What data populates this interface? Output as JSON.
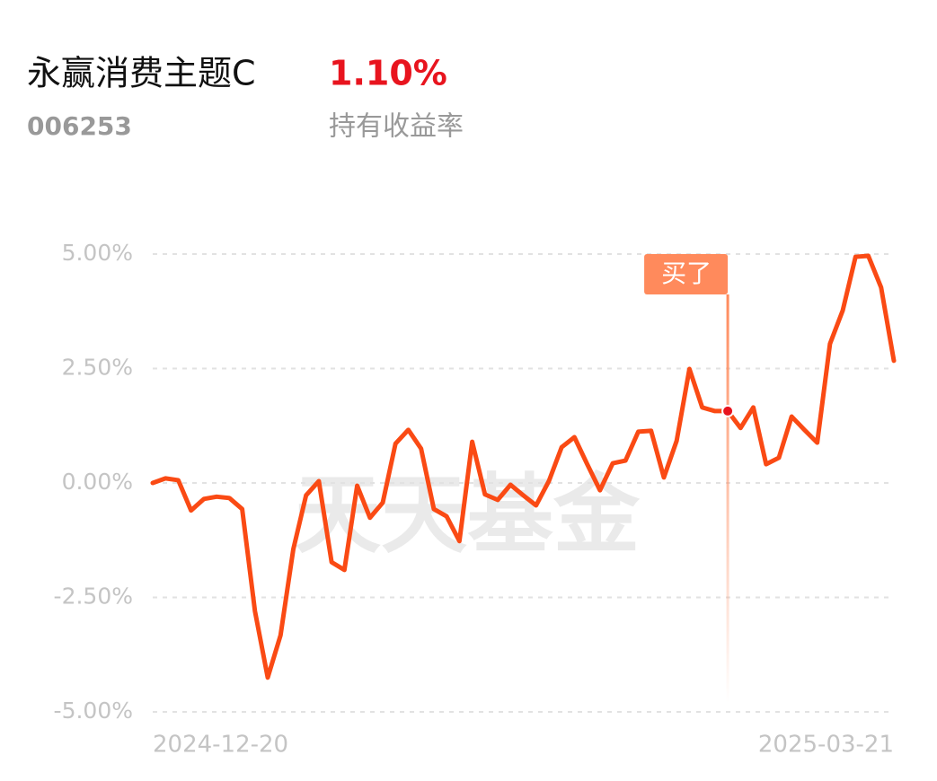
{
  "header": {
    "title": "永赢消费主题C",
    "return": "1.10%",
    "code": "006253",
    "return_label": "持有收益率"
  },
  "chart_data": {
    "type": "line",
    "watermark": "天天基金",
    "categories": [
      "2024-12-20",
      null,
      null,
      null,
      null,
      null,
      null,
      null,
      null,
      null,
      null,
      null,
      null,
      null,
      null,
      null,
      null,
      null,
      null,
      null,
      null,
      null,
      null,
      null,
      null,
      null,
      null,
      null,
      null,
      null,
      null,
      null,
      null,
      null,
      null,
      null,
      null,
      null,
      null,
      null,
      null,
      null,
      null,
      null,
      null,
      null,
      null,
      null,
      null,
      null,
      null,
      null,
      null,
      null,
      null,
      null,
      null,
      null,
      "2025-03-21"
    ],
    "series": [
      {
        "name": "持有收益率",
        "color": "#fa4a14",
        "values": [
          0.0,
          0.1,
          0.06,
          -0.6,
          -0.35,
          -0.3,
          -0.33,
          -0.57,
          -2.8,
          -4.25,
          -3.33,
          -1.45,
          -0.27,
          0.04,
          -1.73,
          -1.9,
          -0.06,
          -0.76,
          -0.43,
          0.86,
          1.16,
          0.75,
          -0.57,
          -0.73,
          -1.27,
          0.9,
          -0.25,
          -0.37,
          -0.04,
          -0.27,
          -0.49,
          0.04,
          0.78,
          1.0,
          0.41,
          -0.16,
          0.43,
          0.49,
          1.12,
          1.14,
          0.12,
          0.92,
          2.49,
          1.65,
          1.57,
          1.57,
          1.2,
          1.65,
          0.41,
          0.55,
          1.45,
          1.16,
          0.88,
          3.04,
          3.77,
          4.94,
          4.96,
          4.27,
          2.67
        ]
      }
    ],
    "annotations": [
      {
        "text": "买了",
        "index": 45
      }
    ],
    "ylim": [
      -5,
      5
    ],
    "yticks": [
      {
        "value": -5,
        "label": "-5.00%"
      },
      {
        "value": -2.5,
        "label": "-2.50%"
      },
      {
        "value": 0,
        "label": "0.00%"
      },
      {
        "value": 2.5,
        "label": "2.50%"
      },
      {
        "value": 5,
        "label": "5.00%"
      }
    ],
    "grid": true
  }
}
